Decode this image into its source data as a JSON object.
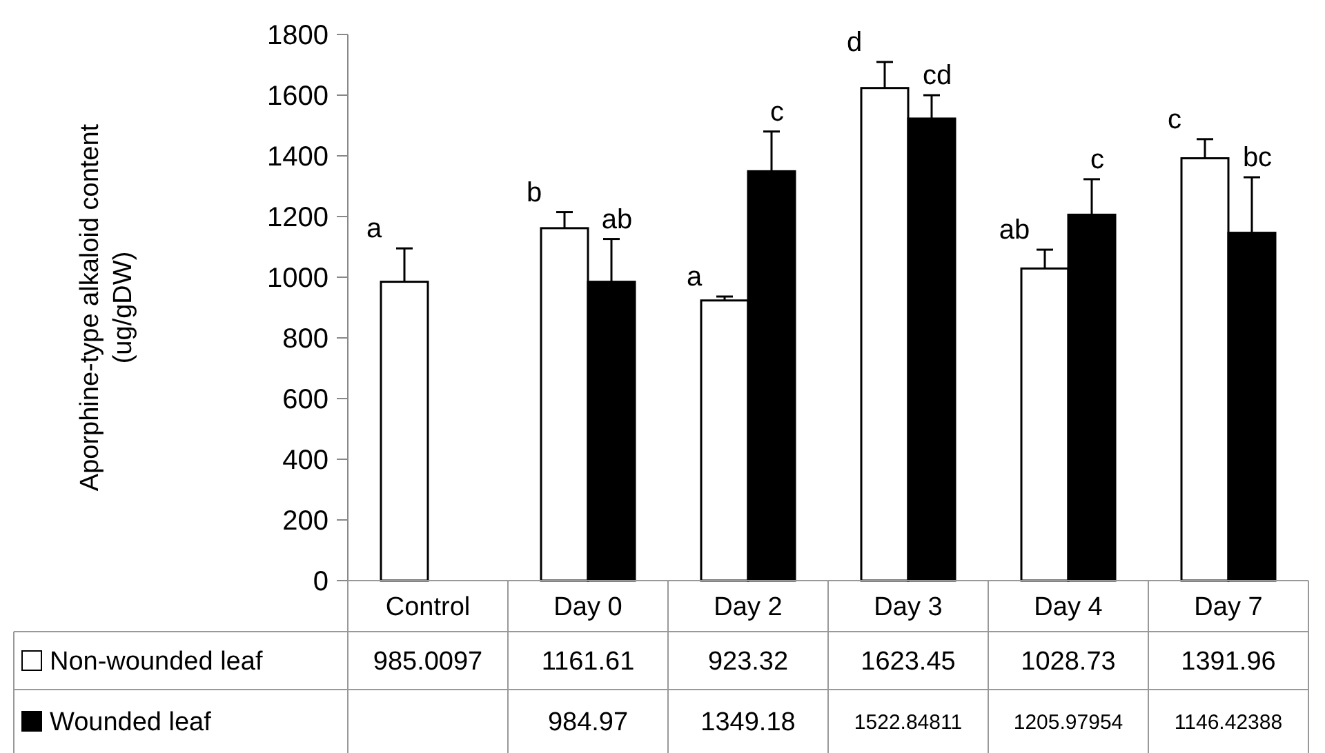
{
  "chart_data": {
    "type": "bar",
    "ylabel": "Aporphine-type alkaloid content (ug/gDW)",
    "categories": [
      "Control",
      "Day 0",
      "Day 2",
      "Day 3",
      "Day 4",
      "Day 7"
    ],
    "series": [
      {
        "name": "Non-wounded leaf",
        "color": "#ffffff",
        "values": [
          985.0097,
          1161.61,
          923.32,
          1623.45,
          1028.73,
          1391.96
        ],
        "errors": [
          110,
          53,
          13,
          86,
          62,
          63
        ]
      },
      {
        "name": "Wounded leaf",
        "color": "#000000",
        "values": [
          null,
          984.97,
          1349.18,
          1522.84811,
          1205.97954,
          1146.42388
        ],
        "errors": [
          null,
          141,
          131,
          77,
          117,
          183
        ]
      }
    ],
    "ylim": [
      0,
      1800
    ],
    "yticks": [
      0,
      200,
      400,
      600,
      800,
      1000,
      1200,
      1400,
      1600,
      1800
    ],
    "grid": false,
    "legend": "bottom",
    "data_labels": true,
    "annotations": [
      "a",
      "b",
      "ab",
      "a",
      "c",
      "d",
      "cd",
      "ab",
      "c",
      "c",
      "bc"
    ]
  }
}
